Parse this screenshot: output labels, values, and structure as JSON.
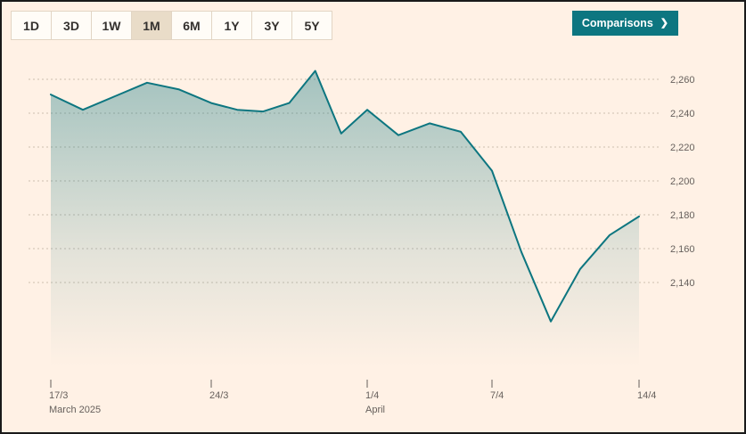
{
  "toolbar": {
    "ranges": [
      {
        "label": "1D",
        "selected": false
      },
      {
        "label": "3D",
        "selected": false
      },
      {
        "label": "1W",
        "selected": false
      },
      {
        "label": "1M",
        "selected": true
      },
      {
        "label": "6M",
        "selected": false
      },
      {
        "label": "1Y",
        "selected": false
      },
      {
        "label": "3Y",
        "selected": false
      },
      {
        "label": "5Y",
        "selected": false
      }
    ],
    "comparisons": {
      "label": "Comparisons",
      "chevron": "❯"
    }
  },
  "chart_data": {
    "type": "area",
    "title": "",
    "xlabel": "",
    "ylabel": "",
    "x": [
      "17/3",
      "18/3",
      "19/3",
      "20/3",
      "21/3",
      "24/3",
      "25/3",
      "26/3",
      "27/3",
      "28/3",
      "31/3",
      "1/4",
      "2/4",
      "3/4",
      "4/4",
      "7/4",
      "8/4",
      "9/4",
      "10/4",
      "11/4",
      "14/4"
    ],
    "values": [
      2251,
      2242,
      2250,
      2258,
      2254,
      2246,
      2242,
      2241,
      2246,
      2265,
      2228,
      2242,
      2227,
      2234,
      2229,
      2206,
      2158,
      2117,
      2148,
      2168,
      2179
    ],
    "y_ticks": [
      2260,
      2240,
      2220,
      2200,
      2180,
      2160,
      2140
    ],
    "y_tick_labels": [
      "2,260",
      "2,240",
      "2,220",
      "2,200",
      "2,180",
      "2,160",
      "2,140"
    ],
    "x_ticks": [
      {
        "index": 0,
        "label": "17/3",
        "sub": "March 2025"
      },
      {
        "index": 5,
        "label": "24/3",
        "sub": ""
      },
      {
        "index": 11,
        "label": "1/4",
        "sub": "April"
      },
      {
        "index": 15,
        "label": "7/4",
        "sub": ""
      },
      {
        "index": 20,
        "label": "14/4",
        "sub": ""
      }
    ],
    "ylim": [
      2080,
      2275
    ],
    "grid": "horizontal-dotted",
    "legend": "none",
    "colors": {
      "line": "#0d7680",
      "fill": "#0d7680",
      "grid": "#cdbfb0",
      "axis_text": "#66605c",
      "background": "#fff1e5",
      "selected_range_bg": "#e9dcc8",
      "comparisons_bg": "#0d7680"
    }
  }
}
